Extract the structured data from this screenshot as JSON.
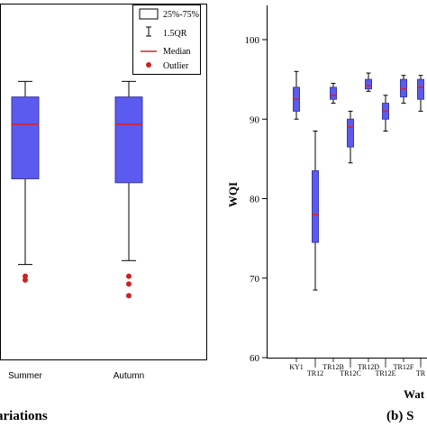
{
  "chart_data": [
    {
      "type": "box",
      "panel_caption": "ariations",
      "categories": [
        "Summer",
        "Autumn"
      ],
      "boxes": [
        {
          "category": "Summer",
          "whisker_low": 72.5,
          "q1": 83.5,
          "median": 90.5,
          "q3": 94.0,
          "whisker_high": 96.0,
          "outliers": [
            71.0,
            70.5
          ]
        },
        {
          "category": "Autumn",
          "whisker_low": 73.0,
          "q1": 83.0,
          "median": 90.5,
          "q3": 94.0,
          "whisker_high": 96.0,
          "outliers": [
            71.0,
            70.0,
            68.5
          ]
        }
      ],
      "legend": {
        "position": "top-right",
        "entries": [
          {
            "label": "25%-75%",
            "symbol": "box"
          },
          {
            "label": "1.5QR",
            "symbol": "whisker"
          },
          {
            "label": "Median",
            "symbol": "line",
            "color": "#e02020"
          },
          {
            "label": "Outlier",
            "symbol": "dot",
            "color": "#cc2222"
          }
        ]
      },
      "grid": false
    },
    {
      "type": "box",
      "panel_caption": "(b) S",
      "xlabel": "Wat",
      "ylabel": "WQI",
      "ylim": [
        60,
        103
      ],
      "yticks": [
        60,
        70,
        80,
        90,
        100
      ],
      "categories": [
        "KY1",
        "TR12",
        "TR12B",
        "TR12C",
        "TR12D",
        "TR12E",
        "TR12F",
        "TR"
      ],
      "boxes": [
        {
          "category": "KY1",
          "whisker_low": 90.0,
          "q1": 91.0,
          "median": 92.5,
          "q3": 94.0,
          "whisker_high": 96.0,
          "outliers": []
        },
        {
          "category": "TR12",
          "whisker_low": 68.5,
          "q1": 74.5,
          "median": 78.0,
          "q3": 83.5,
          "whisker_high": 88.5,
          "outliers": []
        },
        {
          "category": "TR12B",
          "whisker_low": 92.0,
          "q1": 92.5,
          "median": 93.0,
          "q3": 94.0,
          "whisker_high": 94.5,
          "outliers": []
        },
        {
          "category": "TR12C",
          "whisker_low": 84.5,
          "q1": 86.5,
          "median": 89.0,
          "q3": 90.0,
          "whisker_high": 91.0,
          "outliers": []
        },
        {
          "category": "TR12D",
          "whisker_low": 93.5,
          "q1": 93.8,
          "median": 94.2,
          "q3": 95.0,
          "whisker_high": 95.8,
          "outliers": []
        },
        {
          "category": "TR12E",
          "whisker_low": 88.5,
          "q1": 90.0,
          "median": 91.0,
          "q3": 92.0,
          "whisker_high": 93.0,
          "outliers": []
        },
        {
          "category": "TR12F",
          "whisker_low": 92.0,
          "q1": 92.8,
          "median": 93.8,
          "q3": 95.0,
          "whisker_high": 95.5,
          "outliers": []
        },
        {
          "category": "TR",
          "whisker_low": 91.0,
          "q1": 92.5,
          "median": 94.0,
          "q3": 95.0,
          "whisker_high": 95.5,
          "outliers": []
        }
      ],
      "grid": false
    }
  ],
  "colors": {
    "box_fill": "#5b5bf0",
    "box_stroke": "#3a3aa8",
    "median": "#e02020",
    "outlier": "#cc2222"
  }
}
